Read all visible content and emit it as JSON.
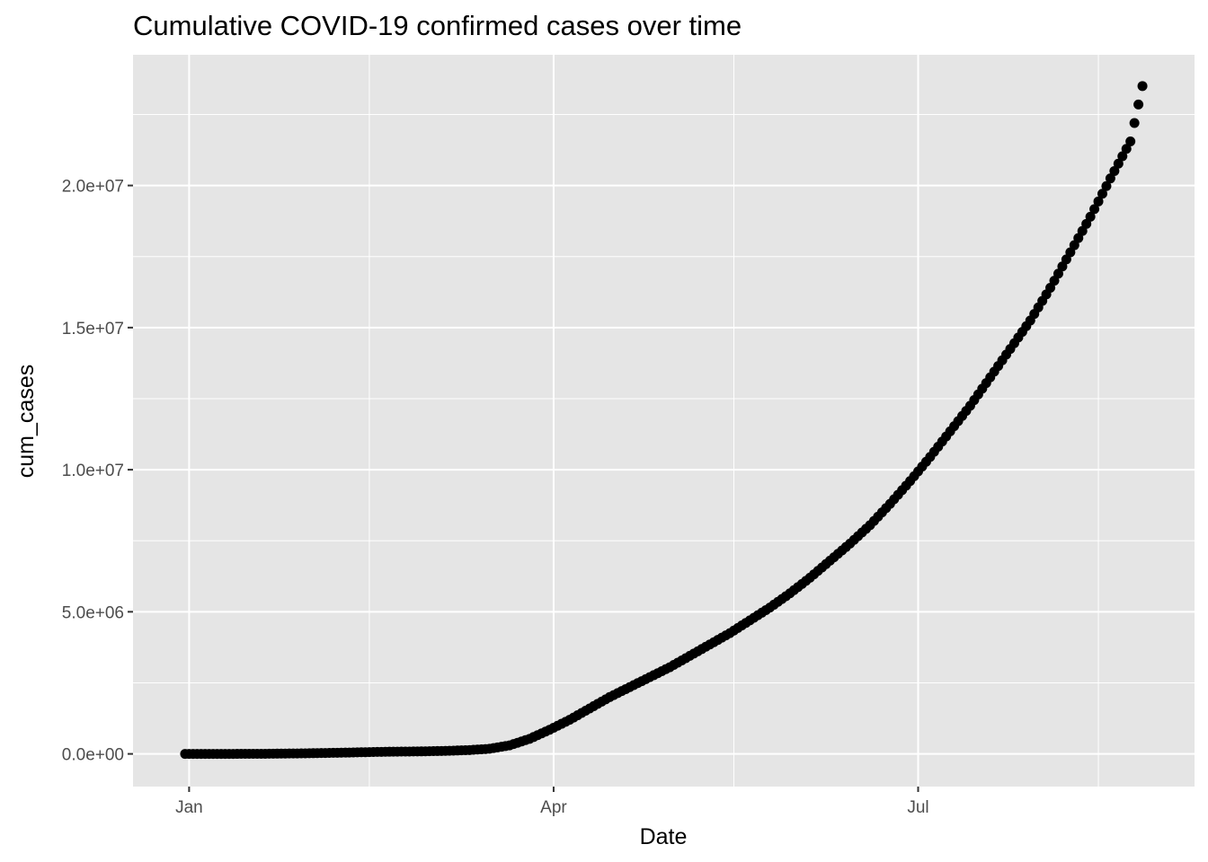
{
  "chart_data": {
    "type": "scatter",
    "title": "Cumulative COVID-19 confirmed cases over time",
    "xlabel": "Date",
    "ylabel": "cum_cases",
    "x_ticks": [
      {
        "date": "2020-01-01",
        "label": "Jan"
      },
      {
        "date": "2020-04-01",
        "label": "Apr"
      },
      {
        "date": "2020-07-01",
        "label": "Jul"
      }
    ],
    "x_minor_ticks": [
      "2020-02-15",
      "2020-05-16",
      "2020-08-15"
    ],
    "y_ticks": [
      {
        "value": 0,
        "label": "0.0e+00"
      },
      {
        "value": 5000000,
        "label": "5.0e+06"
      },
      {
        "value": 10000000,
        "label": "1.0e+07"
      },
      {
        "value": 15000000,
        "label": "1.5e+07"
      },
      {
        "value": 20000000,
        "label": "2.0e+07"
      }
    ],
    "y_minor_ticks": [
      2500000,
      7500000,
      12500000,
      17500000,
      22500000
    ],
    "xlim": [
      "2019-12-18",
      "2020-09-08"
    ],
    "ylim": [
      -1150000,
      24600000
    ],
    "grid": true,
    "colors": {
      "panel": "#e5e5e5",
      "grid": "#ffffff",
      "point": "#000000"
    },
    "series": [
      {
        "x": [
          "2019-12-31",
          "2020-01-10",
          "2020-01-20",
          "2020-01-30",
          "2020-02-09",
          "2020-02-19",
          "2020-02-29",
          "2020-03-06",
          "2020-03-11",
          "2020-03-16",
          "2020-03-21",
          "2020-03-26",
          "2020-03-31",
          "2020-04-05",
          "2020-04-10",
          "2020-04-15",
          "2020-04-20",
          "2020-04-25",
          "2020-04-30",
          "2020-05-05",
          "2020-05-10",
          "2020-05-15",
          "2020-05-20",
          "2020-05-25",
          "2020-05-30",
          "2020-06-04",
          "2020-06-09",
          "2020-06-14",
          "2020-06-19",
          "2020-06-24",
          "2020-06-29",
          "2020-07-04",
          "2020-07-09",
          "2020-07-14",
          "2020-07-19",
          "2020-07-24",
          "2020-07-29",
          "2020-08-03",
          "2020-08-08",
          "2020-08-13",
          "2020-08-18",
          "2020-08-23",
          "2020-08-26"
        ],
        "y": [
          0,
          0,
          5000,
          20000,
          45000,
          75000,
          90000,
          110000,
          135000,
          180000,
          300000,
          530000,
          850000,
          1200000,
          1600000,
          2000000,
          2350000,
          2700000,
          3050000,
          3450000,
          3850000,
          4250000,
          4700000,
          5150000,
          5650000,
          6200000,
          6800000,
          7400000,
          8050000,
          8800000,
          9600000,
          10450000,
          11350000,
          12250000,
          13250000,
          14250000,
          15250000,
          16400000,
          17650000,
          18900000,
          20250000,
          21550000,
          23500000
        ]
      }
    ]
  }
}
